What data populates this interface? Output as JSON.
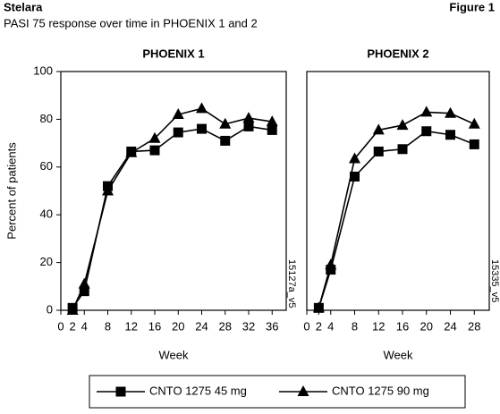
{
  "header": {
    "title": "Stelara",
    "figure": "Figure 1",
    "subtitle": "PASI 75 response over time in PHOENIX 1 and 2"
  },
  "chart_data": [
    {
      "type": "line",
      "title": "PHOENIX 1",
      "x_label": "Week",
      "y_label": "Percent of patients",
      "annotation": "15127a_v5",
      "xlim": [
        0,
        38.4
      ],
      "ylim": [
        0,
        100
      ],
      "xticks": [
        0,
        2,
        4,
        8,
        12,
        16,
        20,
        24,
        28,
        32,
        36
      ],
      "yticks": [
        0,
        20,
        40,
        60,
        80,
        100
      ],
      "x": [
        2,
        4,
        8,
        12,
        16,
        20,
        24,
        28,
        32,
        36
      ],
      "series": [
        {
          "name": "CNTO 1275 45 mg",
          "marker": "square",
          "color": "#000000",
          "values": [
            1,
            8,
            52,
            66.5,
            67,
            74.5,
            76,
            71,
            77,
            75.5
          ]
        },
        {
          "name": "CNTO 1275 90 mg",
          "marker": "triangle",
          "color": "#000000",
          "values": [
            0,
            11,
            50,
            66,
            72,
            82,
            84.5,
            78,
            80.5,
            79
          ]
        }
      ]
    },
    {
      "type": "line",
      "title": "PHOENIX 2",
      "x_label": "Week",
      "annotation": "15335_v5",
      "xlim": [
        0,
        30.5
      ],
      "ylim": [
        0,
        100
      ],
      "xticks": [
        0,
        2,
        4,
        8,
        12,
        16,
        20,
        24,
        28
      ],
      "x": [
        2,
        4,
        8,
        12,
        16,
        20,
        24,
        28
      ],
      "series": [
        {
          "marker": "square",
          "color": "#000000",
          "values": [
            1,
            17,
            56,
            66.5,
            67.5,
            75,
            73.5,
            69.5
          ]
        },
        {
          "marker": "triangle",
          "color": "#000000",
          "values": [
            1,
            19,
            63.5,
            75.5,
            77.5,
            83,
            82.5,
            78
          ]
        }
      ]
    }
  ]
}
